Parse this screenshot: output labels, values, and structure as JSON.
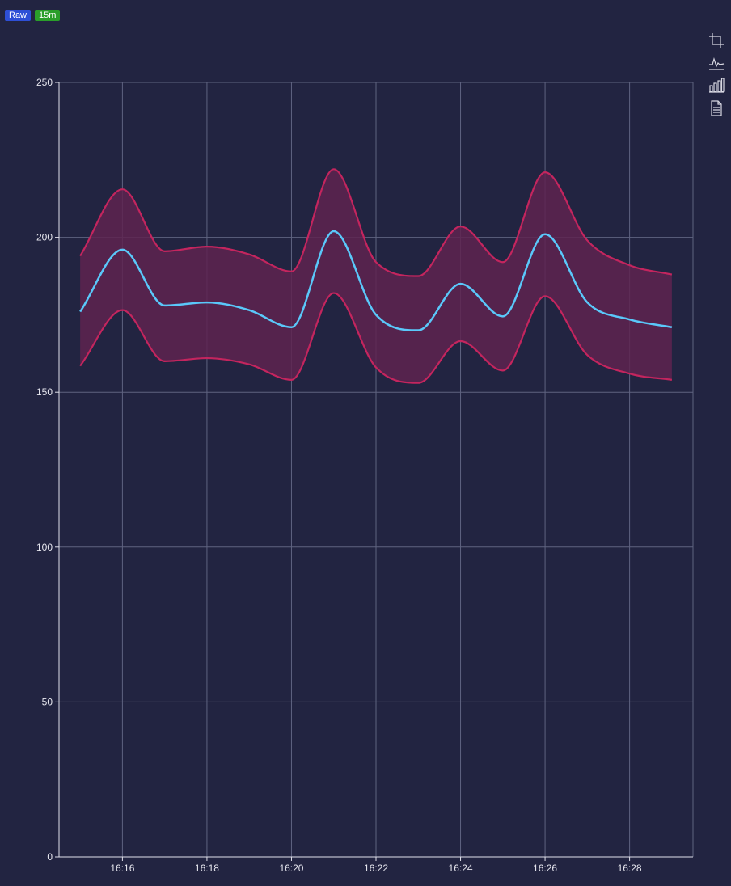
{
  "badges": {
    "mode": "Raw",
    "range": "15m"
  },
  "toolbar": {
    "icons": [
      "crop-icon",
      "line-chart-icon",
      "bar-chart-icon",
      "document-icon"
    ]
  },
  "colors": {
    "background": "#222441",
    "grid": "#5f6380",
    "axis": "#e0e0ea",
    "mean_line": "#5ac8fa",
    "band_line": "#c4255e",
    "band_fill": "#5e2350"
  },
  "chart_data": {
    "type": "area",
    "title": "",
    "xlabel": "",
    "ylabel": "",
    "ylim": [
      0,
      250
    ],
    "yticks": [
      0,
      50,
      100,
      150,
      200,
      250
    ],
    "xlim": [
      "16:14.5",
      "16:29.5"
    ],
    "xticks": [
      "16:16",
      "16:18",
      "16:20",
      "16:22",
      "16:24",
      "16:26",
      "16:28"
    ],
    "x": [
      "16:15",
      "16:16",
      "16:17",
      "16:18",
      "16:19",
      "16:20",
      "16:21",
      "16:22",
      "16:23",
      "16:24",
      "16:25",
      "16:26",
      "16:27",
      "16:28",
      "16:29"
    ],
    "series": [
      {
        "role": "upper",
        "values": [
          194,
          215.5,
          195.5,
          197,
          194.5,
          189,
          222,
          192,
          187.5,
          203.5,
          192,
          221,
          199,
          191,
          188
        ]
      },
      {
        "role": "mean",
        "values": [
          176,
          196,
          178,
          179,
          176.5,
          171,
          202,
          175,
          170,
          185,
          174.5,
          201,
          179,
          173.5,
          171
        ]
      },
      {
        "role": "lower",
        "values": [
          158.5,
          176.5,
          160,
          161,
          159,
          154,
          182,
          158,
          153,
          166.5,
          157,
          181,
          162,
          156,
          154
        ]
      }
    ],
    "grid": true,
    "legend": "none"
  }
}
